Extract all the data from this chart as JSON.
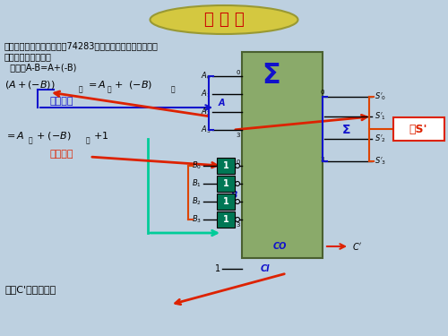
{
  "bg_color": "#bdd0e0",
  "title_text": "习 题 课",
  "title_ellipse_color": "#d4c840",
  "title_text_color": "#cc0000",
  "main_box_color": "#8aaa6a",
  "sigma_text_color": "#1111cc",
  "co_text_color": "#1111cc",
  "ci_text_color": "#1111cc",
  "a_label_color": "#1111cc",
  "b_label_color": "#1111cc",
  "red_color": "#dd2200",
  "blue_color": "#1111cc",
  "orange_color": "#dd4400",
  "cyan_color": "#00cc99",
  "xor_box_color": "#007755",
  "and_s_box_color": "#dd2200",
  "line1": "例：试用四位二进制加法妗74283构成可控的加法、减法器（",
  "line2": "允许附加少量门）。",
  "line3": "  分析：A-B=A+(-B)",
  "text_gewei": "各位不变",
  "text_anwei": "按位取反",
  "text_jiewei": "借位C'为进位取反",
  "text_he_s": "和S'"
}
